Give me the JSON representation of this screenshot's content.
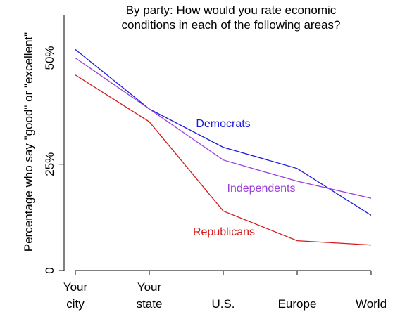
{
  "chart_data": {
    "type": "line",
    "title_lines": [
      "By party:  How would you rate economic",
      "conditions in each of the following areas?"
    ],
    "ylabel": "Percentage who say \"good\" or \"excellent\"",
    "xlabel": "",
    "categories": [
      [
        "Your",
        "city"
      ],
      [
        "Your",
        "state"
      ],
      [
        "U.S."
      ],
      [
        "Europe"
      ],
      [
        "World"
      ]
    ],
    "ylim": [
      0,
      0.6
    ],
    "y_ticks": [
      {
        "value": 0,
        "label": "0"
      },
      {
        "value": 0.25,
        "label": "25%"
      },
      {
        "value": 0.5,
        "label": "50%"
      }
    ],
    "grid": false,
    "legend": "direct labels",
    "series": [
      {
        "name": "Democrats",
        "color": "#1a1adb",
        "values": [
          0.52,
          0.38,
          0.29,
          0.24,
          0.13
        ]
      },
      {
        "name": "Independents",
        "color": "#9b3fdc",
        "values": [
          0.5,
          0.38,
          0.26,
          0.21,
          0.17
        ]
      },
      {
        "name": "Republicans",
        "color": "#d41c1c",
        "values": [
          0.46,
          0.35,
          0.14,
          0.07,
          0.06
        ]
      }
    ]
  }
}
